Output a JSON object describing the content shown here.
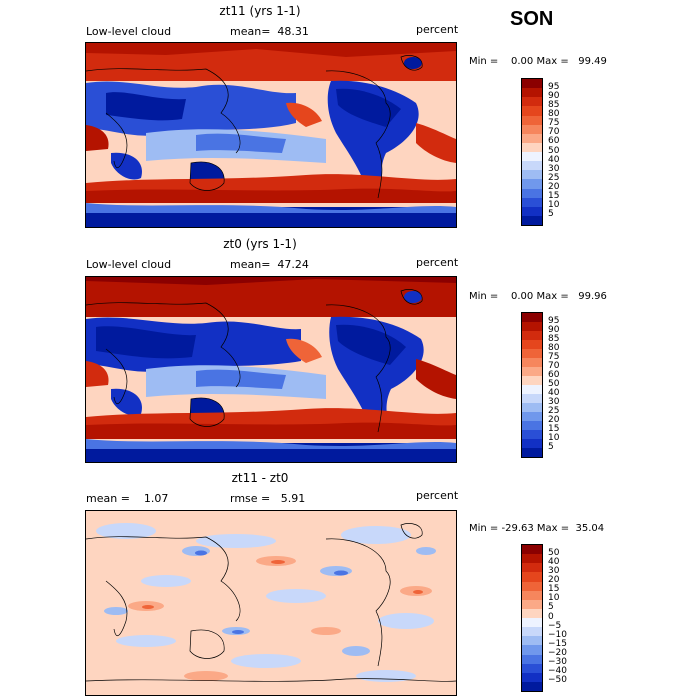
{
  "season": "SON",
  "panels": [
    {
      "title": "zt11 (yrs 1-1)",
      "variable": "Low-level cloud",
      "stat": "mean=  48.31",
      "units": "percent",
      "minmax": "Min =    0.00 Max =   99.49",
      "colorbar": {
        "labels": [
          "95",
          "90",
          "85",
          "80",
          "75",
          "70",
          "60",
          "50",
          "40",
          "30",
          "25",
          "20",
          "15",
          "10",
          "5"
        ],
        "colors": [
          "#8b0000",
          "#b41300",
          "#d22b0e",
          "#e5461d",
          "#ef6438",
          "#f6865d",
          "#fba987",
          "#fed5c0",
          "#eef3ff",
          "#c8d8fa",
          "#9ebcf3",
          "#7098ec",
          "#4a74e3",
          "#2a4fd6",
          "#1230c4",
          "#001a9e"
        ]
      }
    },
    {
      "title": "zt0 (yrs 1-1)",
      "variable": "Low-level cloud",
      "stat": "mean=  47.24",
      "units": "percent",
      "minmax": "Min =    0.00 Max =   99.96",
      "colorbar": {
        "labels": [
          "95",
          "90",
          "85",
          "80",
          "75",
          "70",
          "60",
          "50",
          "40",
          "30",
          "25",
          "20",
          "15",
          "10",
          "5"
        ],
        "colors": [
          "#8b0000",
          "#b41300",
          "#d22b0e",
          "#e5461d",
          "#ef6438",
          "#f6865d",
          "#fba987",
          "#fed5c0",
          "#eef3ff",
          "#c8d8fa",
          "#9ebcf3",
          "#7098ec",
          "#4a74e3",
          "#2a4fd6",
          "#1230c4",
          "#001a9e"
        ]
      }
    },
    {
      "title": "zt11 - zt0",
      "stat_left": "mean =    1.07",
      "stat_right": "rmse =   5.91",
      "units": "percent",
      "minmax": "Min = -29.63 Max =  35.04",
      "colorbar": {
        "labels": [
          "50",
          "40",
          "30",
          "20",
          "15",
          "10",
          "5",
          "0",
          "−5",
          "−10",
          "−15",
          "−20",
          "−30",
          "−40",
          "−50"
        ],
        "colors": [
          "#8b0000",
          "#b41300",
          "#d22b0e",
          "#e5461d",
          "#ef6438",
          "#f6865d",
          "#fba987",
          "#fed5c0",
          "#eef3ff",
          "#c8d8fa",
          "#9ebcf3",
          "#7098ec",
          "#4a74e3",
          "#2a4fd6",
          "#1230c4",
          "#001a9e"
        ]
      }
    }
  ]
}
